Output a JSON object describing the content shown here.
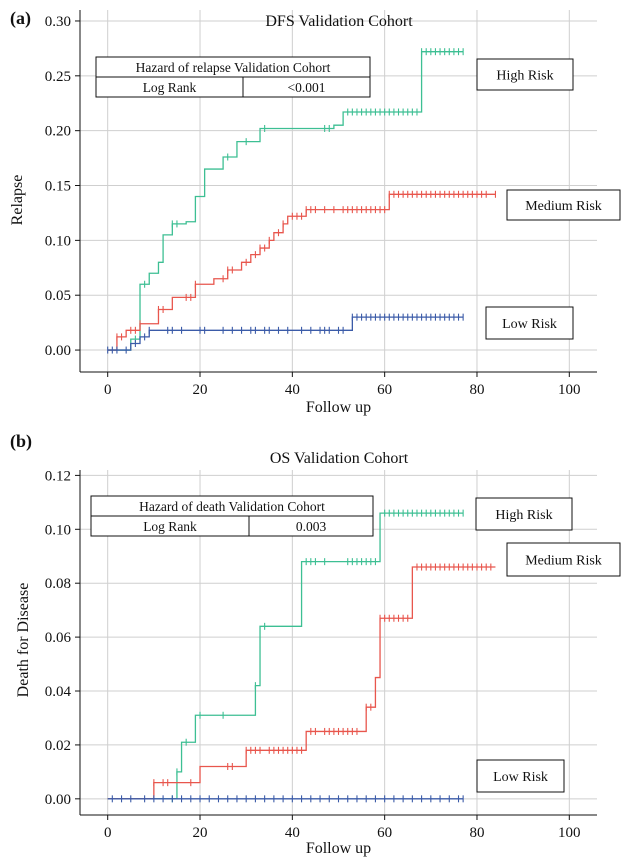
{
  "colors": {
    "high": "#3dbf93",
    "medium": "#e8564d",
    "low": "#3b5ba8"
  },
  "chart_data": [
    {
      "type": "line",
      "panel_label": "(a)",
      "title": "DFS Validation Cohort",
      "xlabel": "Follow up",
      "ylabel": "Relapse",
      "xlim": [
        -6,
        106
      ],
      "ylim": [
        -0.02,
        0.31
      ],
      "xticks": [
        0,
        20,
        40,
        60,
        80,
        100
      ],
      "yticks": [
        0.0,
        0.05,
        0.1,
        0.15,
        0.2,
        0.25,
        0.3
      ],
      "ytick_labels": [
        "0.00",
        "0.05",
        "0.10",
        "0.15",
        "0.20",
        "0.25",
        "0.30"
      ],
      "grid": true,
      "table": {
        "title": "Hazard of relapse Validation Cohort",
        "label": "Log Rank",
        "value": "<0.001"
      },
      "series": [
        {
          "name": "High Risk",
          "color_key": "high",
          "steps": [
            [
              0,
              0
            ],
            [
              4,
              0
            ],
            [
              5,
              0.01
            ],
            [
              7,
              0.06
            ],
            [
              9,
              0.07
            ],
            [
              11,
              0.08
            ],
            [
              12,
              0.105
            ],
            [
              14,
              0.115
            ],
            [
              17,
              0.117
            ],
            [
              19,
              0.14
            ],
            [
              21,
              0.165
            ],
            [
              25,
              0.176
            ],
            [
              28,
              0.19
            ],
            [
              33,
              0.202
            ],
            [
              49,
              0.205
            ],
            [
              51,
              0.217
            ],
            [
              68,
              0.272
            ],
            [
              77,
              0.272
            ]
          ],
          "censors": [
            6,
            8,
            14,
            15,
            26,
            30,
            34,
            47,
            48,
            52,
            53,
            54,
            55,
            56,
            57,
            58,
            59,
            60,
            61,
            62,
            63,
            64,
            65,
            66,
            67,
            68,
            69,
            70,
            71,
            72,
            73,
            74,
            75,
            76,
            77
          ]
        },
        {
          "name": "Medium Risk",
          "color_key": "medium",
          "steps": [
            [
              0,
              0
            ],
            [
              2,
              0.012
            ],
            [
              4,
              0.018
            ],
            [
              7,
              0.024
            ],
            [
              11,
              0.037
            ],
            [
              14,
              0.048
            ],
            [
              19,
              0.06
            ],
            [
              23,
              0.065
            ],
            [
              26,
              0.073
            ],
            [
              29,
              0.08
            ],
            [
              31,
              0.087
            ],
            [
              33,
              0.093
            ],
            [
              35,
              0.1
            ],
            [
              36,
              0.107
            ],
            [
              38,
              0.115
            ],
            [
              39,
              0.122
            ],
            [
              43,
              0.128
            ],
            [
              61,
              0.142
            ],
            [
              84,
              0.142
            ]
          ],
          "censors": [
            2,
            3,
            5,
            6,
            7,
            11,
            12,
            17,
            18,
            19,
            25,
            26,
            27,
            30,
            32,
            33,
            34,
            35,
            37,
            38,
            40,
            41,
            42,
            43,
            44,
            45,
            47,
            49,
            51,
            52,
            53,
            54,
            55,
            56,
            57,
            58,
            59,
            60,
            61,
            62,
            63,
            64,
            65,
            66,
            67,
            68,
            69,
            70,
            71,
            72,
            73,
            74,
            75,
            76,
            77,
            78,
            79,
            80,
            81,
            82,
            84
          ]
        },
        {
          "name": "Low Risk",
          "color_key": "low",
          "steps": [
            [
              0,
              0
            ],
            [
              5,
              0.006
            ],
            [
              7,
              0.012
            ],
            [
              9,
              0.018
            ],
            [
              53,
              0.03
            ],
            [
              77,
              0.03
            ]
          ],
          "censors": [
            0,
            1,
            2,
            4,
            6,
            8,
            9,
            13,
            14,
            16,
            20,
            21,
            25,
            27,
            29,
            31,
            32,
            34,
            35,
            37,
            39,
            42,
            44,
            46,
            47,
            48,
            50,
            51,
            53,
            54,
            55,
            56,
            57,
            58,
            59,
            60,
            61,
            62,
            63,
            64,
            65,
            66,
            67,
            68,
            69,
            70,
            71,
            72,
            73,
            74,
            75,
            76,
            77
          ]
        }
      ]
    },
    {
      "type": "line",
      "panel_label": "(b)",
      "title": "OS Validation Cohort",
      "xlabel": "Follow up",
      "ylabel": "Death for Disease",
      "xlim": [
        -6,
        106
      ],
      "ylim": [
        -0.006,
        0.122
      ],
      "xticks": [
        0,
        20,
        40,
        60,
        80,
        100
      ],
      "yticks": [
        0.0,
        0.02,
        0.04,
        0.06,
        0.08,
        0.1,
        0.12
      ],
      "ytick_labels": [
        "0.00",
        "0.02",
        "0.04",
        "0.06",
        "0.08",
        "0.10",
        "0.12"
      ],
      "grid": true,
      "table": {
        "title": "Hazard of death Validation Cohort",
        "label": "Log Rank",
        "value": "0.003"
      },
      "series": [
        {
          "name": "High Risk",
          "color_key": "high",
          "steps": [
            [
              0,
              0
            ],
            [
              14,
              0
            ],
            [
              15,
              0.01
            ],
            [
              16,
              0.021
            ],
            [
              19,
              0.031
            ],
            [
              32,
              0.042
            ],
            [
              33,
              0.064
            ],
            [
              42,
              0.088
            ],
            [
              59,
              0.106
            ],
            [
              77,
              0.106
            ]
          ],
          "censors": [
            14,
            15,
            17,
            20,
            25,
            32,
            34,
            43,
            44,
            45,
            47,
            52,
            53,
            54,
            55,
            56,
            57,
            58,
            60,
            61,
            62,
            63,
            64,
            65,
            66,
            67,
            68,
            69,
            70,
            71,
            72,
            73,
            74,
            75,
            76,
            77
          ]
        },
        {
          "name": "Medium Risk",
          "color_key": "medium",
          "steps": [
            [
              0,
              0
            ],
            [
              10,
              0.006
            ],
            [
              14,
              0.006
            ],
            [
              20,
              0.012
            ],
            [
              28,
              0.012
            ],
            [
              30,
              0.018
            ],
            [
              43,
              0.025
            ],
            [
              56,
              0.034
            ],
            [
              58,
              0.045
            ],
            [
              59,
              0.067
            ],
            [
              66,
              0.086
            ],
            [
              84,
              0.086
            ]
          ],
          "censors": [
            10,
            12,
            13,
            18,
            26,
            27,
            30,
            31,
            32,
            33,
            35,
            36,
            37,
            38,
            39,
            40,
            41,
            42,
            44,
            45,
            47,
            48,
            49,
            50,
            51,
            52,
            53,
            54,
            56,
            57,
            59,
            60,
            61,
            62,
            63,
            64,
            65,
            67,
            68,
            69,
            70,
            71,
            72,
            73,
            74,
            75,
            76,
            77,
            78,
            79,
            80,
            81,
            82,
            83
          ]
        },
        {
          "name": "Low Risk",
          "color_key": "low",
          "steps": [
            [
              0,
              0
            ],
            [
              77,
              0
            ]
          ],
          "censors": [
            1,
            3,
            5,
            8,
            10,
            12,
            14,
            16,
            18,
            20,
            22,
            24,
            26,
            28,
            30,
            32,
            34,
            36,
            38,
            40,
            42,
            44,
            46,
            48,
            50,
            52,
            54,
            56,
            58,
            60,
            62,
            64,
            66,
            68,
            70,
            72,
            74,
            76,
            77
          ]
        }
      ]
    }
  ]
}
